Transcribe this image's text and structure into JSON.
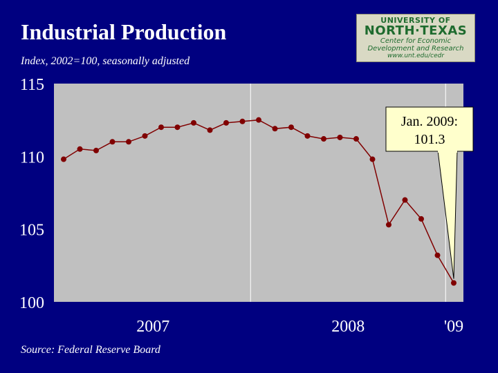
{
  "slide": {
    "title": "Industrial Production",
    "subtitle": "Index, 2002=100, seasonally adjusted",
    "source": "Source:  Federal Reserve Board"
  },
  "logo": {
    "line1": "UNIVERSITY OF",
    "line2": "NORTH·TEXAS",
    "line3": "Center for Economic",
    "line4": "Development and Research",
    "line5": "www.unt.edu/cedr"
  },
  "colors": {
    "background": "#000080",
    "plot_area": "#c0c0c0",
    "line": "#800000",
    "callout": "#ffffcc"
  },
  "chart_data": {
    "type": "line",
    "title": "Industrial Production",
    "ylabel": "Index, 2002=100, seasonally adjusted",
    "xlabel": "",
    "ylim": [
      100,
      115
    ],
    "yticks": [
      100,
      105,
      110,
      115
    ],
    "xtick_labels": [
      {
        "label": "2007",
        "index": 5.5
      },
      {
        "label": "2008",
        "index": 17.5
      },
      {
        "label": "'09",
        "index": 24
      }
    ],
    "x": [
      "Jan 2007",
      "Feb 2007",
      "Mar 2007",
      "Apr 2007",
      "May 2007",
      "Jun 2007",
      "Jul 2007",
      "Aug 2007",
      "Sep 2007",
      "Oct 2007",
      "Nov 2007",
      "Dec 2007",
      "Jan 2008",
      "Feb 2008",
      "Mar 2008",
      "Apr 2008",
      "May 2008",
      "Jun 2008",
      "Jul 2008",
      "Aug 2008",
      "Sep 2008",
      "Oct 2008",
      "Nov 2008",
      "Dec 2008",
      "Jan 2009"
    ],
    "series": [
      {
        "name": "Industrial Production",
        "values": [
          109.8,
          110.5,
          110.4,
          111.0,
          111.0,
          111.4,
          112.0,
          112.0,
          112.3,
          111.8,
          112.3,
          112.4,
          112.5,
          111.9,
          112.0,
          111.4,
          111.2,
          111.3,
          111.2,
          109.8,
          105.3,
          107.0,
          105.7,
          103.2,
          101.3
        ]
      }
    ],
    "annotation": {
      "line1": "Jan. 2009:",
      "line2": "101.3",
      "target_index": 24
    }
  }
}
